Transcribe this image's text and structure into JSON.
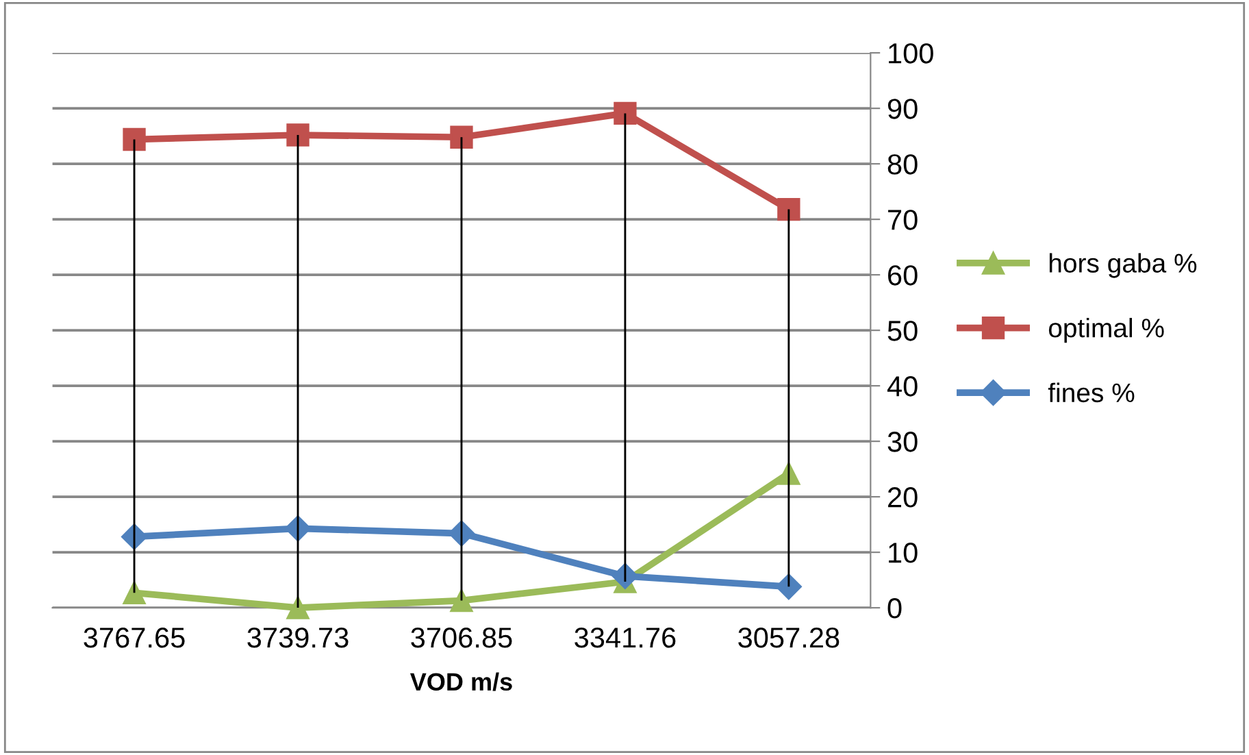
{
  "chart_data": {
    "type": "line",
    "xlabel": "VOD m/s",
    "categories": [
      "3767.65",
      "3739.73",
      "3706.85",
      "3341.76",
      "3057.28"
    ],
    "series": [
      {
        "type": "bar",
        "color": "#000000",
        "base": [
          2.7,
          0,
          1.3,
          4.7,
          3.8
        ],
        "values": [
          81.7,
          85.2,
          83.5,
          84.4,
          68.0
        ]
      },
      {
        "name": "hors gaba %",
        "color": "#9bbb59",
        "marker": "triangle",
        "values": [
          2.7,
          0,
          1.3,
          4.7,
          24.2
        ]
      },
      {
        "name": "optimal %",
        "color": "#c0504d",
        "marker": "square",
        "values": [
          84.4,
          85.2,
          84.8,
          89.1,
          71.8
        ]
      },
      {
        "name": "fines %",
        "color": "#4f81bd",
        "marker": "diamond",
        "values": [
          12.8,
          14.3,
          13.4,
          5.7,
          3.8
        ]
      }
    ],
    "ylim": [
      0,
      100
    ],
    "yticks": [
      0,
      10,
      20,
      30,
      40,
      50,
      60,
      70,
      80,
      90,
      100
    ],
    "grid": "y",
    "legend": "right",
    "line_style": "solid"
  }
}
